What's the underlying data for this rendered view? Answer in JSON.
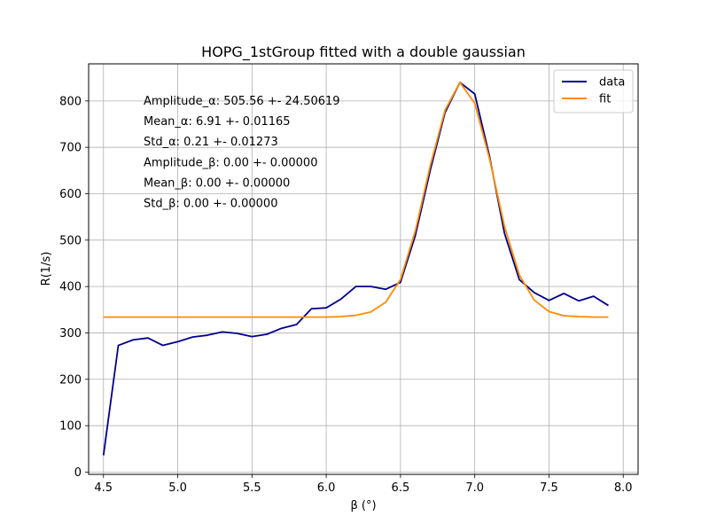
{
  "chart_data": {
    "type": "line",
    "title": "HOPG_1stGroup fitted with a double gaussian",
    "xlabel": "β (°)",
    "ylabel": "R(1/s)",
    "xlim": [
      4.4,
      8.1
    ],
    "ylim": [
      -5,
      880
    ],
    "xticks": [
      "4.5",
      "5.0",
      "5.5",
      "6.0",
      "6.5",
      "7.0",
      "7.5",
      "8.0"
    ],
    "yticks": [
      "0",
      "100",
      "200",
      "300",
      "400",
      "500",
      "600",
      "700",
      "800"
    ],
    "grid": true,
    "legend_position": "top-right",
    "annotations": [
      "Amplitude_α: 505.56 +- 24.50619",
      "Mean_α: 6.91 +- 0.01165",
      "Std_α: 0.21 +- 0.01273",
      "Amplitude_β: 0.00 +- 0.00000",
      "Mean_β: 0.00 +- 0.00000",
      "Std_β: 0.00 +- 0.00000"
    ],
    "x": [
      4.5,
      4.6,
      4.7,
      4.8,
      4.9,
      5.0,
      5.1,
      5.2,
      5.3,
      5.4,
      5.5,
      5.6,
      5.7,
      5.8,
      5.9,
      6.0,
      6.1,
      6.2,
      6.3,
      6.4,
      6.5,
      6.6,
      6.7,
      6.8,
      6.9,
      7.0,
      7.1,
      7.2,
      7.3,
      7.4,
      7.5,
      7.6,
      7.7,
      7.8,
      7.9
    ],
    "series": [
      {
        "name": "data",
        "color": "#00008b",
        "values": [
          36,
          273,
          285,
          289,
          273,
          281,
          291,
          295,
          302,
          299,
          292,
          297,
          310,
          318,
          352,
          354,
          373,
          400,
          400,
          394,
          409,
          510,
          650,
          775,
          840,
          815,
          680,
          515,
          415,
          387,
          370,
          385,
          369,
          379,
          359
        ]
      },
      {
        "name": "fit",
        "color": "#ff8c00",
        "values": [
          334,
          334,
          334,
          334,
          334,
          334,
          334,
          334,
          334,
          334,
          334,
          334,
          334,
          334,
          334,
          334,
          335,
          338,
          345,
          366,
          415,
          520,
          660,
          780,
          840,
          795,
          675,
          530,
          425,
          371,
          346,
          337,
          335,
          334,
          334
        ]
      }
    ]
  }
}
